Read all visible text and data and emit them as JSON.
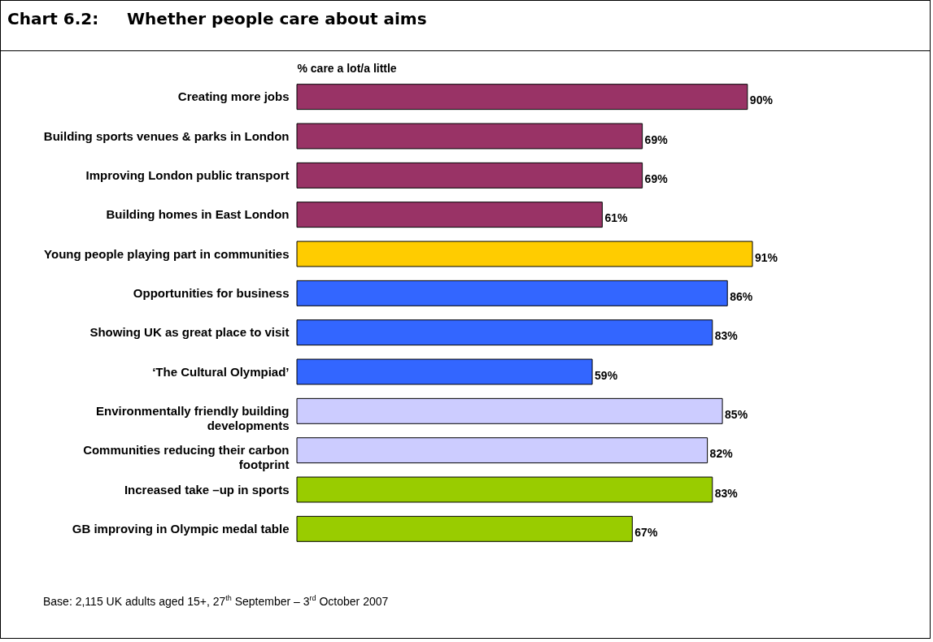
{
  "chart_data": {
    "type": "bar",
    "orientation": "horizontal",
    "title": "Chart 6.2:     Whether people care about aims",
    "xlabel": "% care a lot/a little",
    "categories": [
      "Creating more jobs",
      "Building sports venues & parks in London",
      "Improving London public transport",
      "Building homes in East London",
      "Young people playing part in communities",
      "Opportunities for business",
      "Showing UK as great place to visit",
      "‘The Cultural Olympiad’",
      "Environmentally friendly building developments",
      "Communities reducing their carbon footprint",
      "Increased take –up in sports",
      "GB improving in Olympic medal table"
    ],
    "values": [
      90,
      69,
      69,
      61,
      91,
      86,
      83,
      59,
      85,
      82,
      83,
      67
    ],
    "value_labels": [
      "90%",
      "69%",
      "69%",
      "61%",
      "91%",
      "86%",
      "83%",
      "59%",
      "85%",
      "82%",
      "83%",
      "67%"
    ],
    "colors": [
      "#993366",
      "#993366",
      "#993366",
      "#993366",
      "#ffcc00",
      "#3366ff",
      "#3366ff",
      "#3366ff",
      "#ccccff",
      "#ccccff",
      "#99cc00",
      "#99cc00"
    ],
    "annotations": [
      "Base: 2,115 UK adults aged 15+, 27$^{th}$ September – 3$^{rd}$ October 2007"
    ],
    "grid": false,
    "legend": false
  }
}
